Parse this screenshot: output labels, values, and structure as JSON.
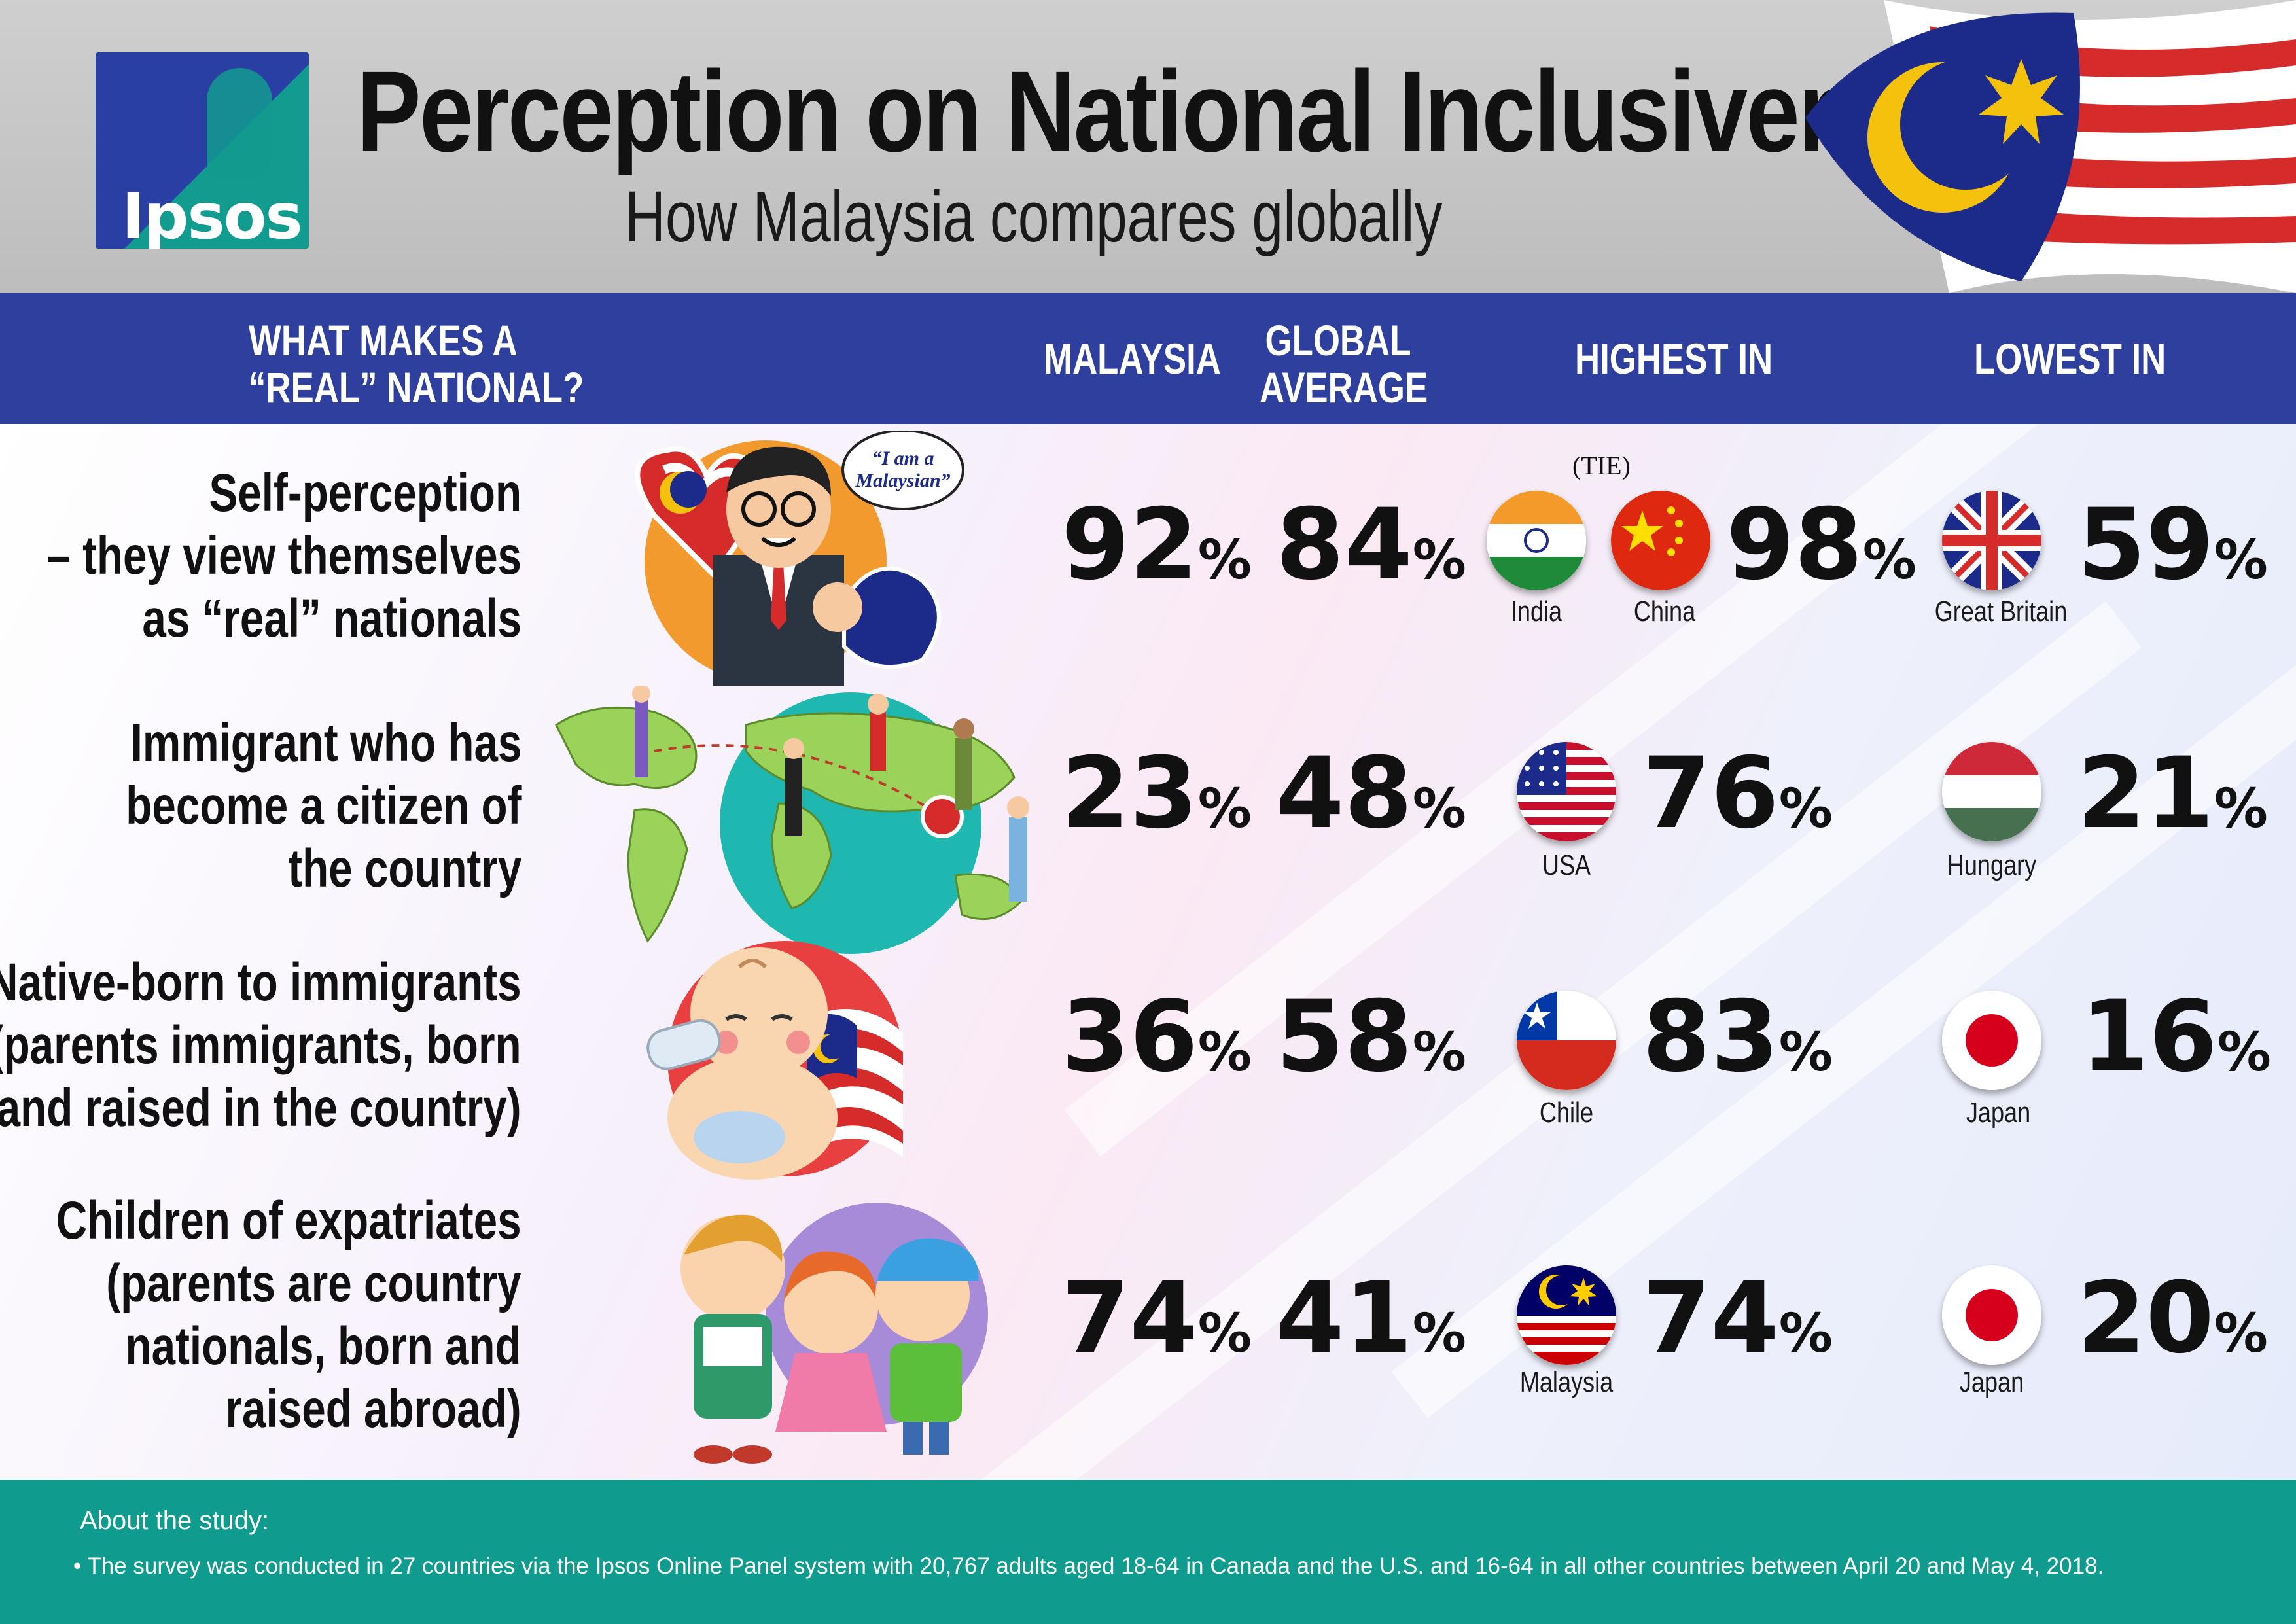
{
  "brand": {
    "logo_text": "Ipsos"
  },
  "title": "Perception on National Inclusiveness",
  "subtitle": "How Malaysia compares globally",
  "columns": {
    "question": "WHAT MAKES A “REAL” NATIONAL?",
    "question_line1": "WHAT MAKES A",
    "question_line2": "“REAL” NATIONAL?",
    "malaysia": "MALAYSIA",
    "global_line1": "GLOBAL",
    "global_line2": "AVERAGE",
    "highest": "HIGHEST IN",
    "lowest": "LOWEST IN"
  },
  "rows": [
    {
      "label_lines": [
        "Self-perception",
        "– they view themselves",
        "as “real” nationals"
      ],
      "malaysia": "92",
      "global": "84",
      "highest_value": "98",
      "highest_note": "(TIE)",
      "highest_countries": [
        "India",
        "China"
      ],
      "lowest_value": "59",
      "lowest_countries": [
        "Great Britain"
      ],
      "speech": "“I am a Malaysian”"
    },
    {
      "label_lines": [
        "Immigrant who has",
        "become a citizen of",
        "the country"
      ],
      "malaysia": "23",
      "global": "48",
      "highest_value": "76",
      "highest_countries": [
        "USA"
      ],
      "lowest_value": "21",
      "lowest_countries": [
        "Hungary"
      ]
    },
    {
      "label_lines": [
        "Native-born to immigrants",
        "(parents immigrants, born",
        "and raised in the country)"
      ],
      "malaysia": "36",
      "global": "58",
      "highest_value": "83",
      "highest_countries": [
        "Chile"
      ],
      "lowest_value": "16",
      "lowest_countries": [
        "Japan"
      ]
    },
    {
      "label_lines": [
        "Children of expatriates",
        "(parents are country",
        "nationals, born and",
        "raised abroad)"
      ],
      "malaysia": "74",
      "global": "41",
      "highest_value": "74",
      "highest_countries": [
        "Malaysia"
      ],
      "lowest_value": "20",
      "lowest_countries": [
        "Japan"
      ]
    }
  ],
  "percent_sign": "%",
  "footer": {
    "about": "About the study:",
    "note": "• The survey was conducted in 27 countries via the Ipsos Online Panel system with 20,767 adults aged 18-64 in Canada and the U.S. and 16-64 in all other countries between April 20 and May 4, 2018."
  },
  "colors": {
    "header_blue": "#2f3f9e",
    "footer_teal": "#0f9b8e",
    "top_gray": "#c8c8c8"
  }
}
